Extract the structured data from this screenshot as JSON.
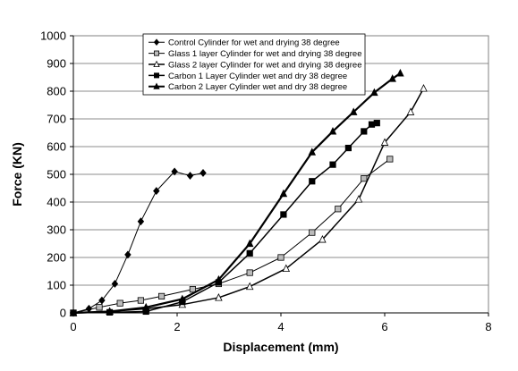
{
  "chart_data": {
    "type": "line",
    "title": "",
    "xlabel": "Displacement (mm)",
    "ylabel": "Force (KN)",
    "xlim": [
      0,
      8
    ],
    "ylim": [
      0,
      1000
    ],
    "x_ticks": [
      "0",
      "2",
      "4",
      "6",
      "8"
    ],
    "y_ticks": [
      "0",
      "100",
      "200",
      "300",
      "400",
      "500",
      "600",
      "700",
      "800",
      "900",
      "1000"
    ],
    "grid": "horizontal",
    "legend_position": "top-center",
    "series": [
      {
        "name": "Control Cylinder for wet and drying 38 degree",
        "marker": "diamond",
        "color": "#000000",
        "marker_fill": "#000000",
        "line_width": 1,
        "points": [
          [
            0,
            0
          ],
          [
            0.3,
            15
          ],
          [
            0.55,
            45
          ],
          [
            0.8,
            105
          ],
          [
            1.05,
            210
          ],
          [
            1.3,
            330
          ],
          [
            1.6,
            440
          ],
          [
            1.95,
            510
          ],
          [
            2.25,
            495
          ],
          [
            2.5,
            505
          ]
        ]
      },
      {
        "name": "Glass 1 layer Cylinder for wet and drying 38 degree",
        "marker": "square",
        "color": "#000000",
        "marker_fill": "#bbbbbb",
        "line_width": 1,
        "points": [
          [
            0,
            0
          ],
          [
            0.5,
            20
          ],
          [
            0.9,
            35
          ],
          [
            1.3,
            45
          ],
          [
            1.7,
            60
          ],
          [
            2.3,
            85
          ],
          [
            2.8,
            105
          ],
          [
            3.4,
            145
          ],
          [
            4.0,
            200
          ],
          [
            4.6,
            290
          ],
          [
            5.1,
            375
          ],
          [
            5.6,
            485
          ],
          [
            6.1,
            555
          ]
        ]
      },
      {
        "name": "Glass 2 layer Cylinder for wet and drying 38 degree",
        "marker": "triangle-open",
        "color": "#000000",
        "marker_fill": "#ffffff",
        "line_width": 1.5,
        "points": [
          [
            0,
            0
          ],
          [
            0.7,
            5
          ],
          [
            1.4,
            15
          ],
          [
            2.1,
            30
          ],
          [
            2.8,
            55
          ],
          [
            3.4,
            95
          ],
          [
            4.1,
            160
          ],
          [
            4.8,
            265
          ],
          [
            5.5,
            410
          ],
          [
            6.0,
            615
          ],
          [
            6.5,
            725
          ],
          [
            6.75,
            810
          ]
        ]
      },
      {
        "name": "Carbon 1 Layer Cylinder wet and dry 38 degree",
        "marker": "square",
        "color": "#000000",
        "marker_fill": "#000000",
        "line_width": 1.5,
        "points": [
          [
            0,
            0
          ],
          [
            0.7,
            2
          ],
          [
            1.4,
            5
          ],
          [
            2.1,
            40
          ],
          [
            2.8,
            110
          ],
          [
            3.4,
            215
          ],
          [
            4.05,
            355
          ],
          [
            4.6,
            475
          ],
          [
            5.0,
            535
          ],
          [
            5.3,
            595
          ],
          [
            5.6,
            655
          ],
          [
            5.75,
            680
          ],
          [
            5.85,
            685
          ]
        ]
      },
      {
        "name": "Carbon 2 Layer Cylinder wet and dry 38 degree",
        "marker": "triangle",
        "color": "#000000",
        "marker_fill": "#000000",
        "line_width": 2.2,
        "points": [
          [
            0,
            0
          ],
          [
            0.7,
            5
          ],
          [
            1.4,
            20
          ],
          [
            2.1,
            50
          ],
          [
            2.8,
            120
          ],
          [
            3.4,
            250
          ],
          [
            4.05,
            430
          ],
          [
            4.6,
            580
          ],
          [
            5.0,
            655
          ],
          [
            5.4,
            725
          ],
          [
            5.8,
            795
          ],
          [
            6.15,
            845
          ],
          [
            6.3,
            865
          ]
        ]
      }
    ]
  }
}
